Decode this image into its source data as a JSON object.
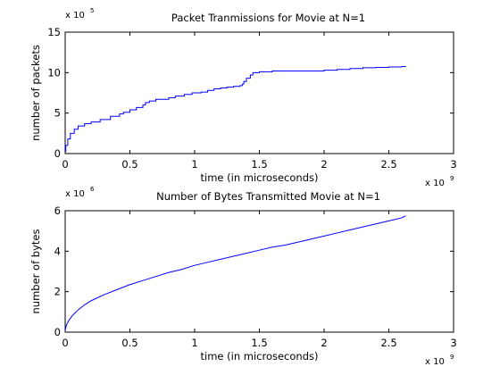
{
  "figure": {
    "background": "#ffffff",
    "line_color": "#0000ff",
    "axis_color": "#000000"
  },
  "chart_data": [
    {
      "type": "line",
      "title": "Packet Tranmissions for Movie at N=1",
      "xlabel": "time (in microseconds)",
      "ylabel": "number of packets",
      "x_multiplier": {
        "base": "x 10",
        "exp": "9"
      },
      "y_multiplier": {
        "base": "x 10",
        "exp": "5"
      },
      "xlim": [
        0,
        3
      ],
      "ylim": [
        0,
        15
      ],
      "xticks": [
        0,
        0.5,
        1,
        1.5,
        2,
        2.5,
        3
      ],
      "xtick_labels": [
        "0",
        "0.5",
        "1",
        "1.5",
        "2",
        "2.5",
        "3"
      ],
      "yticks": [
        0,
        5,
        10,
        15
      ],
      "ytick_labels": [
        "0",
        "5",
        "10",
        "15"
      ],
      "step": true,
      "series": [
        {
          "color": "#0000ff",
          "x": [
            0,
            0.005,
            0.02,
            0.04,
            0.07,
            0.1,
            0.15,
            0.2,
            0.27,
            0.35,
            0.42,
            0.45,
            0.5,
            0.55,
            0.6,
            0.62,
            0.65,
            0.7,
            0.8,
            0.85,
            0.92,
            0.98,
            1.05,
            1.1,
            1.15,
            1.2,
            1.25,
            1.3,
            1.35,
            1.37,
            1.38,
            1.4,
            1.43,
            1.45,
            1.5,
            1.6,
            1.8,
            2.0,
            2.1,
            2.2,
            2.3,
            2.4,
            2.5,
            2.6,
            2.63
          ],
          "values": [
            0.3,
            1.0,
            1.8,
            2.5,
            3.0,
            3.4,
            3.7,
            3.9,
            4.2,
            4.6,
            4.9,
            5.1,
            5.4,
            5.7,
            6.0,
            6.3,
            6.5,
            6.7,
            6.9,
            7.1,
            7.3,
            7.5,
            7.6,
            7.8,
            8.0,
            8.1,
            8.2,
            8.3,
            8.4,
            8.6,
            8.9,
            9.3,
            9.7,
            10.0,
            10.1,
            10.2,
            10.2,
            10.3,
            10.4,
            10.5,
            10.6,
            10.65,
            10.7,
            10.75,
            10.8
          ]
        }
      ]
    },
    {
      "type": "line",
      "title": "Number of Bytes Transmitted Movie at N=1",
      "xlabel": "time (in microseconds)",
      "ylabel": "number of bytes",
      "x_multiplier": {
        "base": "x 10",
        "exp": "9"
      },
      "y_multiplier": {
        "base": "x 10",
        "exp": "6"
      },
      "xlim": [
        0,
        3
      ],
      "ylim": [
        0,
        6
      ],
      "xticks": [
        0,
        0.5,
        1,
        1.5,
        2,
        2.5,
        3
      ],
      "xtick_labels": [
        "0",
        "0.5",
        "1",
        "1.5",
        "2",
        "2.5",
        "3"
      ],
      "yticks": [
        0,
        2,
        4,
        6
      ],
      "ytick_labels": [
        "0",
        "2",
        "4",
        "6"
      ],
      "step": false,
      "series": [
        {
          "color": "#0000ff",
          "x": [
            0,
            0.01,
            0.03,
            0.06,
            0.1,
            0.15,
            0.2,
            0.3,
            0.4,
            0.5,
            0.6,
            0.7,
            0.8,
            0.9,
            1.0,
            1.1,
            1.2,
            1.3,
            1.4,
            1.5,
            1.6,
            1.7,
            1.8,
            1.9,
            2.0,
            2.1,
            2.2,
            2.3,
            2.4,
            2.5,
            2.6,
            2.63
          ],
          "values": [
            0.1,
            0.35,
            0.6,
            0.85,
            1.1,
            1.35,
            1.55,
            1.85,
            2.1,
            2.35,
            2.55,
            2.75,
            2.95,
            3.1,
            3.3,
            3.45,
            3.6,
            3.75,
            3.9,
            4.05,
            4.2,
            4.3,
            4.45,
            4.6,
            4.75,
            4.9,
            5.05,
            5.2,
            5.35,
            5.5,
            5.65,
            5.75
          ]
        }
      ]
    }
  ]
}
